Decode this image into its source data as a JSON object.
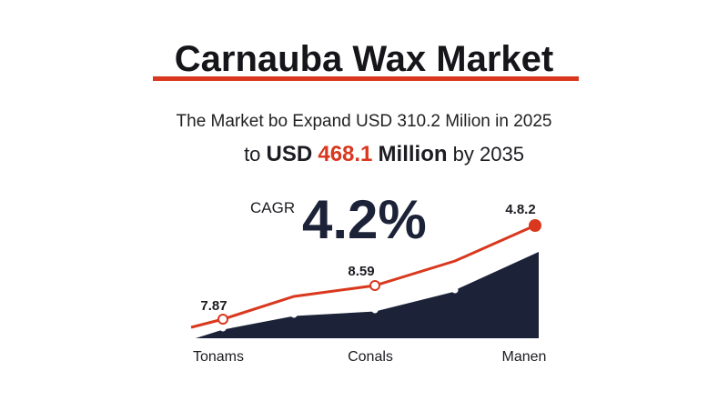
{
  "header": {
    "title": "Carnauba Wax Market",
    "line1": "The Market bo Expand USD 310.2 Milion in 2025",
    "line2": {
      "prefix": "to",
      "currency": "USD",
      "amount": "468.1",
      "unit": "Million",
      "suffix": "by 2035"
    }
  },
  "cagr": {
    "label": "CAGR",
    "value": "4.2%"
  },
  "graphic": {
    "point_labels": [
      "7.87",
      "8.59",
      "4.8.2"
    ],
    "axis_labels": [
      "Tonams",
      "Conals",
      "Manen"
    ]
  }
}
